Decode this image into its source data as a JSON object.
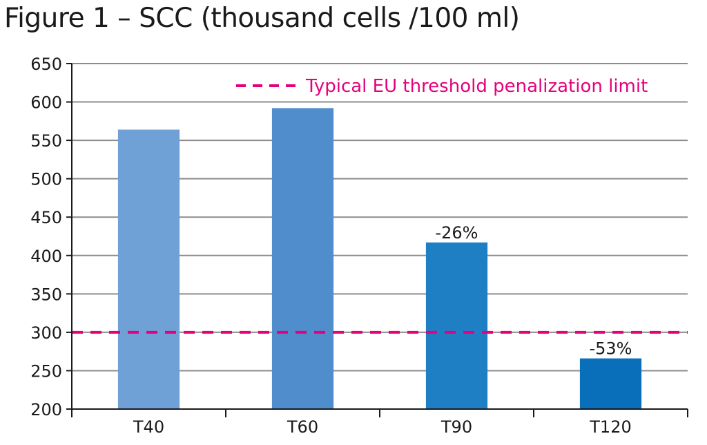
{
  "title": "Figure 1 – SCC (thousand cells /100 ml)",
  "colors": {
    "gridline": "#8c8c8c",
    "axis": "#1a1a1a",
    "threshold": "#e5007d",
    "bars": [
      "#6fa0d6",
      "#4f8dcc",
      "#1e7fc5",
      "#0a6fba"
    ]
  },
  "chart_data": {
    "type": "bar",
    "title": "Figure 1 – SCC (thousand cells /100 ml)",
    "xlabel": "",
    "ylabel": "",
    "categories": [
      "T40",
      "T60",
      "T90",
      "T120"
    ],
    "values": [
      564,
      592,
      417,
      266
    ],
    "data_labels": [
      "",
      "",
      "-26%",
      "-53%"
    ],
    "ylim": [
      200,
      650
    ],
    "yticks": [
      200,
      250,
      300,
      350,
      400,
      450,
      500,
      550,
      600,
      650
    ],
    "grid": true,
    "threshold": {
      "value": 300,
      "label": "Typical EU threshold penalization limit",
      "style": "dashed"
    },
    "legend_position": "top-right"
  }
}
